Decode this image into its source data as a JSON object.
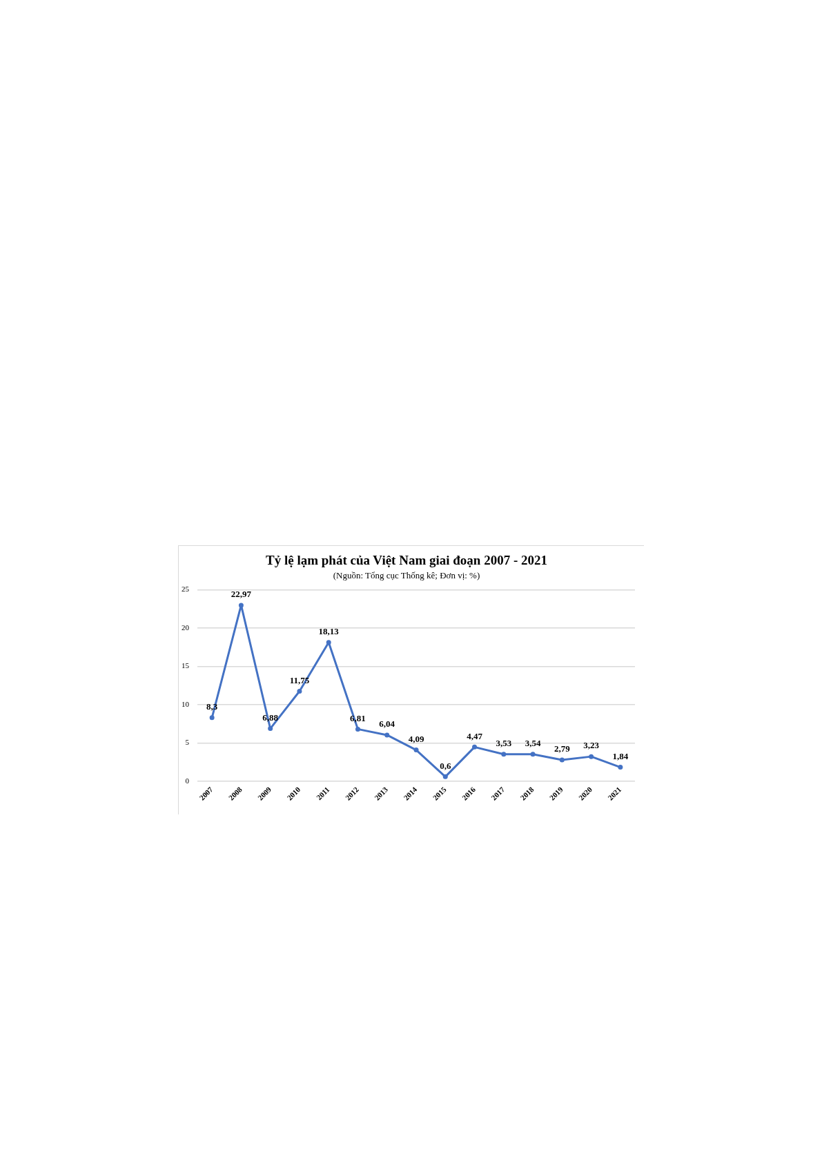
{
  "chart_data": {
    "type": "line",
    "title": "Tỷ lệ lạm phát của Việt Nam giai đoạn 2007 - 2021",
    "subtitle": "(Nguồn: Tổng cục Thống kê; Đơn vị: %)",
    "categories": [
      "2007",
      "2008",
      "2009",
      "2010",
      "2011",
      "2012",
      "2013",
      "2014",
      "2015",
      "2016",
      "2017",
      "2018",
      "2019",
      "2020",
      "2021"
    ],
    "values": [
      8.3,
      22.97,
      6.88,
      11.75,
      18.13,
      6.81,
      6.04,
      4.09,
      0.6,
      4.47,
      3.53,
      3.54,
      2.79,
      3.23,
      1.84
    ],
    "value_labels": [
      "8,3",
      "22,97",
      "6,88",
      "11,75",
      "18,13",
      "6,81",
      "6,04",
      "4,09",
      "0,6",
      "4,47",
      "3,53",
      "3,54",
      "2,79",
      "3,23",
      "1,84"
    ],
    "color": "#4472c4",
    "ylim": [
      0,
      25
    ],
    "yticks": [
      0,
      5,
      10,
      15,
      20,
      25
    ],
    "grid": "y",
    "marker": "circle",
    "line_style": "solid"
  }
}
